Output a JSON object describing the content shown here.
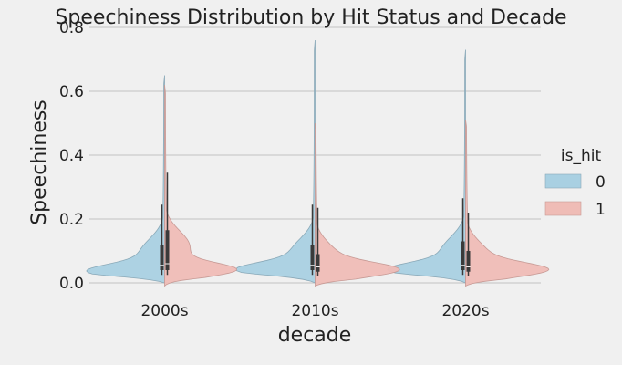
{
  "chart_data": {
    "type": "violin",
    "title": "Speechiness Distribution by Hit Status and Decade",
    "xlabel": "decade",
    "ylabel": "Speechiness",
    "categories": [
      "2000s",
      "2010s",
      "2020s"
    ],
    "ylim": [
      -0.02,
      0.8
    ],
    "yticks": [
      0.0,
      0.2,
      0.4,
      0.6,
      0.8
    ],
    "ytick_labels": [
      "0.0",
      "0.2",
      "0.4",
      "0.6",
      "0.8"
    ],
    "grid": "horizontal",
    "legend": {
      "title": "is_hit",
      "position": "right",
      "entries": [
        {
          "label": "0",
          "color": "#a9d0e2"
        },
        {
          "label": "1",
          "color": "#efbcb6"
        }
      ]
    },
    "series": [
      {
        "name": "0",
        "side": "left",
        "color": "#a9d0e2",
        "groups": [
          {
            "y_min": 0.0,
            "y_max": 0.65,
            "q1": 0.04,
            "median": 0.055,
            "q3": 0.12,
            "whisker_low": 0.025,
            "whisker_high": 0.245,
            "peak_y": 0.035
          },
          {
            "y_min": 0.0,
            "y_max": 0.76,
            "q1": 0.04,
            "median": 0.055,
            "q3": 0.12,
            "whisker_low": 0.025,
            "whisker_high": 0.245,
            "peak_y": 0.04
          },
          {
            "y_min": 0.0,
            "y_max": 0.73,
            "q1": 0.04,
            "median": 0.055,
            "q3": 0.13,
            "whisker_low": 0.025,
            "whisker_high": 0.265,
            "peak_y": 0.04
          }
        ]
      },
      {
        "name": "1",
        "side": "right",
        "color": "#efbcb6",
        "groups": [
          {
            "y_min": -0.01,
            "y_max": 0.62,
            "q1": 0.04,
            "median": 0.06,
            "q3": 0.165,
            "whisker_low": 0.025,
            "whisker_high": 0.345,
            "peak_y": 0.04
          },
          {
            "y_min": -0.01,
            "y_max": 0.5,
            "q1": 0.035,
            "median": 0.05,
            "q3": 0.09,
            "whisker_low": 0.02,
            "whisker_high": 0.235,
            "peak_y": 0.04
          },
          {
            "y_min": -0.01,
            "y_max": 0.51,
            "q1": 0.035,
            "median": 0.05,
            "q3": 0.1,
            "whisker_low": 0.02,
            "whisker_high": 0.22,
            "peak_y": 0.04
          }
        ]
      }
    ]
  }
}
